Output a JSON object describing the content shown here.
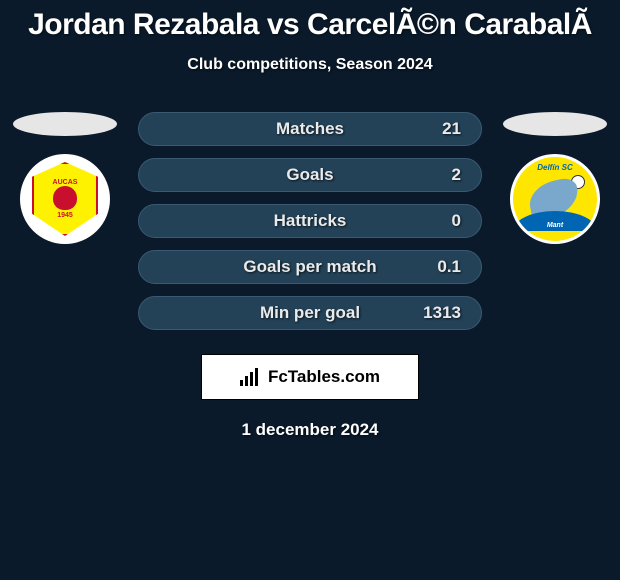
{
  "title": "Jordan Rezabala vs CarcelÃ©n CarabalÃ",
  "subtitle": "Club competitions, Season 2024",
  "date": "1 december 2024",
  "brand": "FcTables.com",
  "left_club": {
    "name": "AUCAS",
    "year": "1945"
  },
  "right_club": {
    "top_text": "Delfín SC",
    "bottom_text": "Mant"
  },
  "stats": [
    {
      "label": "Matches",
      "value": "21"
    },
    {
      "label": "Goals",
      "value": "2"
    },
    {
      "label": "Hattricks",
      "value": "0"
    },
    {
      "label": "Goals per match",
      "value": "0.1"
    },
    {
      "label": "Min per goal",
      "value": "1313"
    }
  ],
  "colors": {
    "background": "#0a1a2a",
    "bar_bg": "#234258",
    "bar_border": "#3a5a72",
    "text": "#eaeaea"
  }
}
